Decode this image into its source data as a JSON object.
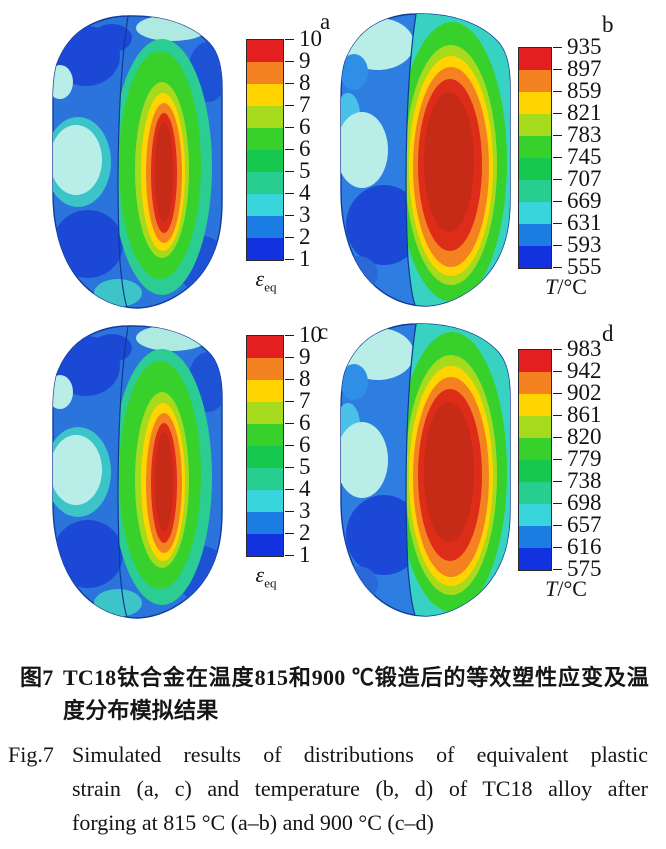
{
  "figure": {
    "palette_top_to_bottom": [
      "#e41f1f",
      "#f58220",
      "#ffd400",
      "#a6da1c",
      "#38d12c",
      "#16c84e",
      "#28cd90",
      "#38d5dd",
      "#1b7ce4",
      "#1231df"
    ],
    "surface_colors": {
      "outer_surface_blue": "#2a74dc",
      "dark_blue_patch": "#1b49d6",
      "light_cyan_patch": "#b9eee8",
      "cut_face_core_red": "#d02c18"
    },
    "panels": [
      {
        "label": "a",
        "unit": {
          "symbol": "ε",
          "sub": "eq",
          "suffix": ""
        },
        "ticks": [
          "10",
          "9",
          "8",
          "7",
          "6",
          "6",
          "5",
          "4",
          "3",
          "2",
          "1"
        ]
      },
      {
        "label": "b",
        "unit": {
          "symbol": "T",
          "sub": "",
          "suffix": "/°C"
        },
        "ticks": [
          "935",
          "897",
          "859",
          "821",
          "783",
          "745",
          "707",
          "669",
          "631",
          "593",
          "555"
        ]
      },
      {
        "label": "c",
        "unit": {
          "symbol": "ε",
          "sub": "eq",
          "suffix": ""
        },
        "ticks": [
          "10",
          "9",
          "8",
          "7",
          "6",
          "6",
          "5",
          "4",
          "3",
          "2",
          "1"
        ]
      },
      {
        "label": "d",
        "unit": {
          "symbol": "T",
          "sub": "",
          "suffix": "/°C"
        },
        "ticks": [
          "983",
          "942",
          "902",
          "861",
          "820",
          "779",
          "738",
          "698",
          "657",
          "616",
          "575"
        ]
      }
    ]
  },
  "caption_cn": {
    "label": "图7",
    "line1": "TC18钛合金在温度815和900 ℃锻造后的等效塑性应变及温",
    "line2": "度分布模拟结果"
  },
  "caption_en": {
    "label": "Fig.7",
    "line1": "Simulated results of distributions of equivalent plastic",
    "line2": "strain (a, c) and temperature (b, d) of TC18 alloy after",
    "line3": "forging at 815 °C (a–b) and 900 °C (c–d)"
  },
  "chart_data": [
    {
      "type": "heatmap",
      "panel": "a",
      "quantity": "equivalent plastic strain εeq",
      "condition": "TC18 alloy forged at 815 °C",
      "colorbar_ticks": [
        10,
        9,
        8,
        7,
        6,
        6,
        5,
        4,
        3,
        2,
        1
      ],
      "value_range": [
        1,
        10
      ],
      "colorbar_label": "εeq",
      "distribution": "elongated red core ~9–10 at the center of the cut cross-section, decreasing through orange/gold/yellow-green rings to a wide green band ~5–6, teal ~4 near the cut edge, and blue ~1–2 on the outer surface with light-cyan ~3 patches"
    },
    {
      "type": "heatmap",
      "panel": "b",
      "quantity": "temperature T/°C",
      "condition": "TC18 alloy forged at 815 °C",
      "colorbar_ticks": [
        935,
        897,
        859,
        821,
        783,
        745,
        707,
        669,
        631,
        593,
        555
      ],
      "value_range": [
        555,
        935
      ],
      "colorbar_label": "T/°C",
      "distribution": "large red core ~897–935 °C filling most of the cut face, thin orange/gold/yellow-green rings, green band ~745–783 °C at the cut rim, blue outer surface ~555–655 °C with light-cyan patches"
    },
    {
      "type": "heatmap",
      "panel": "c",
      "quantity": "equivalent plastic strain εeq",
      "condition": "TC18 alloy forged at 900 °C",
      "colorbar_ticks": [
        10,
        9,
        8,
        7,
        6,
        6,
        5,
        4,
        3,
        2,
        1
      ],
      "value_range": [
        1,
        10
      ],
      "colorbar_label": "εeq",
      "distribution": "narrow red core ~9–10 at mid-height of the cut face surrounded by orange and gold rings, broad green region ~5–6, teal ~4 rim, blue ~1–2 outer surface"
    },
    {
      "type": "heatmap",
      "panel": "d",
      "quantity": "temperature T/°C",
      "condition": "TC18 alloy forged at 900 °C",
      "colorbar_ticks": [
        983,
        942,
        902,
        861,
        820,
        779,
        738,
        698,
        657,
        616,
        575
      ],
      "value_range": [
        575,
        983
      ],
      "colorbar_label": "T/°C",
      "distribution": "large red core ~942–983 °C on the cut face, thin orange/gold rings, green band ~779–820 °C near the edges, blue ~575–660 °C outer surface with light-cyan patches"
    }
  ]
}
